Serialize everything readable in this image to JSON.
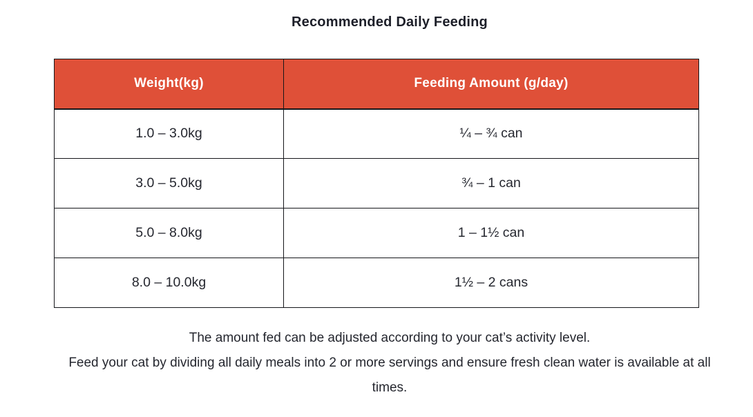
{
  "title": "Recommended Daily Feeding",
  "colors": {
    "header_bg": "#df5038",
    "header_text": "#ffffff",
    "body_text": "#25272f",
    "border": "#15161a"
  },
  "table": {
    "columns": [
      "Weight(kg)",
      "Feeding Amount (g/day)"
    ],
    "rows": [
      {
        "weight": "1.0 – 3.0kg",
        "amount": "¼ – ¾ can"
      },
      {
        "weight": "3.0 – 5.0kg",
        "amount": "¾ – 1 can"
      },
      {
        "weight": "5.0 – 8.0kg",
        "amount": "1 – 1½ can"
      },
      {
        "weight": "8.0 – 10.0kg",
        "amount": "1½ – 2 cans"
      }
    ]
  },
  "notes": {
    "line1": "The amount fed can be adjusted according to your cat’s activity level.",
    "line2": "Feed your cat by dividing all daily meals into 2 or more servings and ensure fresh clean water is available at all times."
  }
}
